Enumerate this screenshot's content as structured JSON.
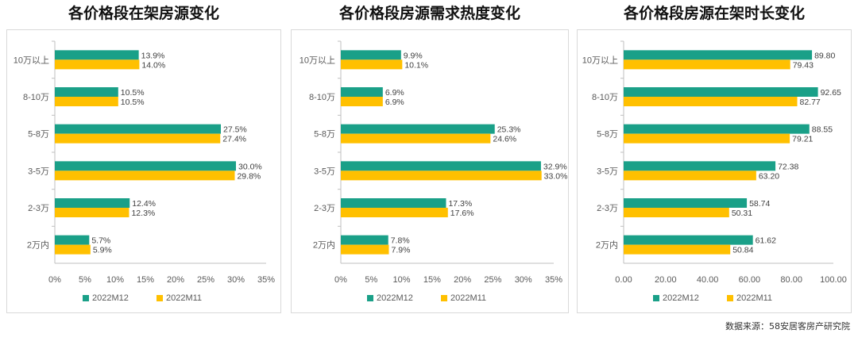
{
  "colors": {
    "series1": "#1aa088",
    "series2": "#ffc000",
    "axis": "#bfbfbf",
    "tick_text": "#595959",
    "label_text": "#404040"
  },
  "source_text": "数据来源：58安居客房产研究院",
  "chart_data": [
    {
      "type": "bar",
      "orientation": "horizontal",
      "title": "各价格段在架房源变化",
      "categories": [
        "10万以上",
        "8-10万",
        "5-8万",
        "3-5万",
        "2-3万",
        "2万内"
      ],
      "series": [
        {
          "name": "2022M12",
          "values": [
            13.9,
            10.5,
            27.5,
            30.0,
            12.4,
            5.7
          ],
          "labels": [
            "13.9%",
            "10.5%",
            "27.5%",
            "30.0%",
            "12.4%",
            "5.7%"
          ]
        },
        {
          "name": "2022M11",
          "values": [
            14.0,
            10.5,
            27.4,
            29.8,
            12.3,
            5.9
          ],
          "labels": [
            "14.0%",
            "10.5%",
            "27.4%",
            "29.8%",
            "12.3%",
            "5.9%"
          ]
        }
      ],
      "xlim": [
        0,
        35
      ],
      "xticks": [
        0,
        5,
        10,
        15,
        20,
        25,
        30,
        35
      ],
      "xtick_labels": [
        "0%",
        "5%",
        "10%",
        "15%",
        "20%",
        "25%",
        "30%",
        "35%"
      ],
      "legend": "bottom",
      "grid": false
    },
    {
      "type": "bar",
      "orientation": "horizontal",
      "title": "各价格段房源需求热度变化",
      "categories": [
        "10万以上",
        "8-10万",
        "5-8万",
        "3-5万",
        "2-3万",
        "2万内"
      ],
      "series": [
        {
          "name": "2022M12",
          "values": [
            9.9,
            6.9,
            25.3,
            32.9,
            17.3,
            7.8
          ],
          "labels": [
            "9.9%",
            "6.9%",
            "25.3%",
            "32.9%",
            "17.3%",
            "7.8%"
          ]
        },
        {
          "name": "2022M11",
          "values": [
            10.1,
            6.9,
            24.6,
            33.0,
            17.6,
            7.9
          ],
          "labels": [
            "10.1%",
            "6.9%",
            "24.6%",
            "33.0%",
            "17.6%",
            "7.9%"
          ]
        }
      ],
      "xlim": [
        0,
        35
      ],
      "xticks": [
        0,
        5,
        10,
        15,
        20,
        25,
        30,
        35
      ],
      "xtick_labels": [
        "0%",
        "5%",
        "10%",
        "15%",
        "20%",
        "25%",
        "30%",
        "35%"
      ],
      "legend": "bottom",
      "grid": false
    },
    {
      "type": "bar",
      "orientation": "horizontal",
      "title": "各价格段房源在架时长变化",
      "categories": [
        "10万以上",
        "8-10万",
        "5-8万",
        "3-5万",
        "2-3万",
        "2万内"
      ],
      "series": [
        {
          "name": "2022M12",
          "values": [
            89.8,
            92.65,
            88.55,
            72.38,
            58.74,
            61.62
          ],
          "labels": [
            "89.80",
            "92.65",
            "88.55",
            "72.38",
            "58.74",
            "61.62"
          ]
        },
        {
          "name": "2022M11",
          "values": [
            79.43,
            82.77,
            79.21,
            63.2,
            50.31,
            50.84
          ],
          "labels": [
            "79.43",
            "82.77",
            "79.21",
            "63.20",
            "50.31",
            "50.84"
          ]
        }
      ],
      "xlim": [
        0,
        100
      ],
      "xticks": [
        0,
        20,
        40,
        60,
        80,
        100
      ],
      "xtick_labels": [
        "0.00",
        "20.00",
        "40.00",
        "60.00",
        "80.00",
        "100.00"
      ],
      "legend": "bottom",
      "grid": false
    }
  ]
}
